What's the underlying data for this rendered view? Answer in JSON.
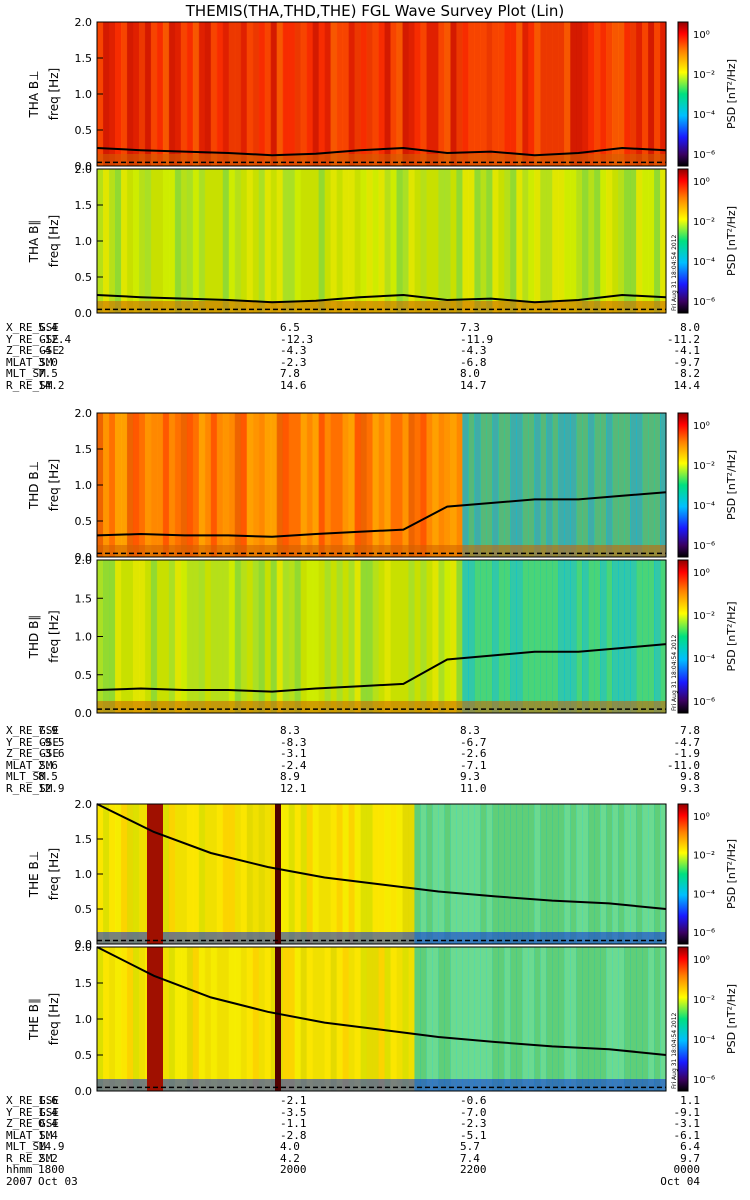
{
  "title": "THEMIS(THA,THD,THE) FGL Wave Survey Plot (Lin)",
  "colorbar": {
    "label": "PSD [nT²/Hz]",
    "ticks": [
      "10⁰",
      "10⁻²",
      "10⁻⁴",
      "10⁻⁶"
    ],
    "stamp": "Fri Aug 31 18:04:54 2012"
  },
  "chart_data": [
    {
      "type": "heatmap",
      "panel": "THA B⊥",
      "ylabel_probe": "THA B⊥",
      "ylabel_unit": "freq [Hz]",
      "ylim": [
        0,
        2.0
      ],
      "yticks": [
        "2.0",
        "1.5",
        "1.0",
        "0.5",
        "0.0"
      ],
      "base_level": "red",
      "gyro_line": [
        0.25,
        0.22,
        0.2,
        0.18,
        0.15,
        0.17,
        0.22,
        0.25,
        0.18,
        0.2,
        0.15,
        0.18,
        0.25,
        0.22
      ]
    },
    {
      "type": "heatmap",
      "panel": "THA B∥",
      "ylabel_probe": "THA B∥",
      "ylabel_unit": "freq [Hz]",
      "ylim": [
        0,
        2.0
      ],
      "yticks": [
        "2.0",
        "1.5",
        "1.0",
        "0.5",
        "0.0"
      ],
      "base_level": "yellow-green",
      "gyro_line": [
        0.25,
        0.22,
        0.2,
        0.18,
        0.15,
        0.17,
        0.22,
        0.25,
        0.18,
        0.2,
        0.15,
        0.18,
        0.25,
        0.22
      ]
    },
    {
      "type": "heatmap",
      "panel": "THD B⊥",
      "ylabel_probe": "THD B⊥",
      "ylabel_unit": "freq [Hz]",
      "ylim": [
        0,
        2.0
      ],
      "yticks": [
        "2.0",
        "1.5",
        "1.0",
        "0.5",
        "0.0"
      ],
      "base_level": "orange",
      "gyro_line": [
        0.3,
        0.32,
        0.3,
        0.3,
        0.28,
        0.32,
        0.35,
        0.38,
        0.7,
        0.75,
        0.8,
        0.8,
        0.85,
        0.9
      ]
    },
    {
      "type": "heatmap",
      "panel": "THD B∥",
      "ylabel_probe": "THD B∥",
      "ylabel_unit": "freq [Hz]",
      "ylim": [
        0,
        2.0
      ],
      "yticks": [
        "2.0",
        "1.5",
        "1.0",
        "0.5",
        "0.0"
      ],
      "base_level": "yellow-green",
      "gyro_line": [
        0.3,
        0.32,
        0.3,
        0.3,
        0.28,
        0.32,
        0.35,
        0.38,
        0.7,
        0.75,
        0.8,
        0.8,
        0.85,
        0.9
      ]
    },
    {
      "type": "heatmap",
      "panel": "THE B⊥",
      "ylabel_probe": "THE B⊥",
      "ylabel_unit": "freq [Hz]",
      "ylim": [
        0,
        2.0
      ],
      "yticks": [
        "2.0",
        "1.5",
        "1.0",
        "0.5",
        "0.0"
      ],
      "base_level": "yellow",
      "gyro_line": [
        2.0,
        1.6,
        1.3,
        1.1,
        0.95,
        0.85,
        0.75,
        0.68,
        0.62,
        0.58,
        0.5
      ]
    },
    {
      "type": "heatmap",
      "panel": "THE B∥",
      "ylabel_probe": "THE B∥",
      "ylabel_unit": "freq [Hz]",
      "ylim": [
        0,
        2.0
      ],
      "yticks": [
        "2.0",
        "1.5",
        "1.0",
        "0.5",
        "0.0"
      ],
      "base_level": "yellow",
      "gyro_line": [
        2.0,
        1.6,
        1.3,
        1.1,
        0.95,
        0.85,
        0.75,
        0.68,
        0.62,
        0.58,
        0.5
      ]
    }
  ],
  "ephemeris": {
    "tha": {
      "labels": [
        "X_RE_GSE",
        "Y_RE_GSE",
        "Z_RE_GSE",
        "MLAT_SM",
        "MLT_SM",
        "R_RE_SM"
      ],
      "cols": [
        [
          "5.4",
          "-12.4",
          "-4.2",
          "3.0",
          "7.5",
          "14.2"
        ],
        [
          "6.5",
          "-12.3",
          "-4.3",
          "-2.3",
          "7.8",
          "14.6"
        ],
        [
          "7.3",
          "-11.9",
          "-4.3",
          "-6.8",
          "8.0",
          "14.7"
        ],
        [
          "8.0",
          "-11.2",
          "-4.1",
          "-9.7",
          "8.2",
          "14.4"
        ]
      ]
    },
    "thd": {
      "labels": [
        "X_RE_GSE",
        "Y_RE_GSE",
        "Z_RE_GSE",
        "MLAT_SM",
        "MLT_SM",
        "R_RE_SM"
      ],
      "cols": [
        [
          "7.9",
          "-9.5",
          "-3.6",
          "2.6",
          "8.5",
          "12.9"
        ],
        [
          "8.3",
          "-8.3",
          "-3.1",
          "-2.4",
          "8.9",
          "12.1"
        ],
        [
          "8.3",
          "-6.7",
          "-2.6",
          "-7.1",
          "9.3",
          "11.0"
        ],
        [
          "7.8",
          "-4.7",
          "-1.9",
          "-11.0",
          "9.8",
          "9.3"
        ]
      ]
    },
    "the": {
      "labels": [
        "X_RE_GSE",
        "Y_RE_GSE",
        "Z_RE_GSE",
        "MLAT_SM",
        "MLT_SM",
        "R_RE_SM",
        "hhmm",
        "2007"
      ],
      "cols": [
        [
          "1.6",
          "1.4",
          "0.4",
          "1.4",
          "14.9",
          "2.2",
          "1800",
          "Oct 03"
        ],
        [
          "-2.1",
          "-3.5",
          "-1.1",
          "-2.8",
          "4.0",
          "4.2",
          "2000",
          ""
        ],
        [
          "-0.6",
          "-7.0",
          "-2.3",
          "-5.1",
          "5.7",
          "7.4",
          "2200",
          ""
        ],
        [
          "1.1",
          "-9.1",
          "-3.1",
          "-6.1",
          "6.4",
          "9.7",
          "0000",
          "Oct 04"
        ]
      ]
    }
  }
}
